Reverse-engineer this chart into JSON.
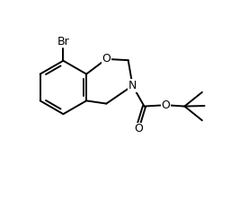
{
  "bg_color": "#ffffff",
  "line_color": "#000000",
  "lw": 1.4,
  "figsize": [
    2.76,
    2.22
  ],
  "dpi": 100,
  "xlim": [
    0,
    10
  ],
  "ylim": [
    0,
    8
  ]
}
